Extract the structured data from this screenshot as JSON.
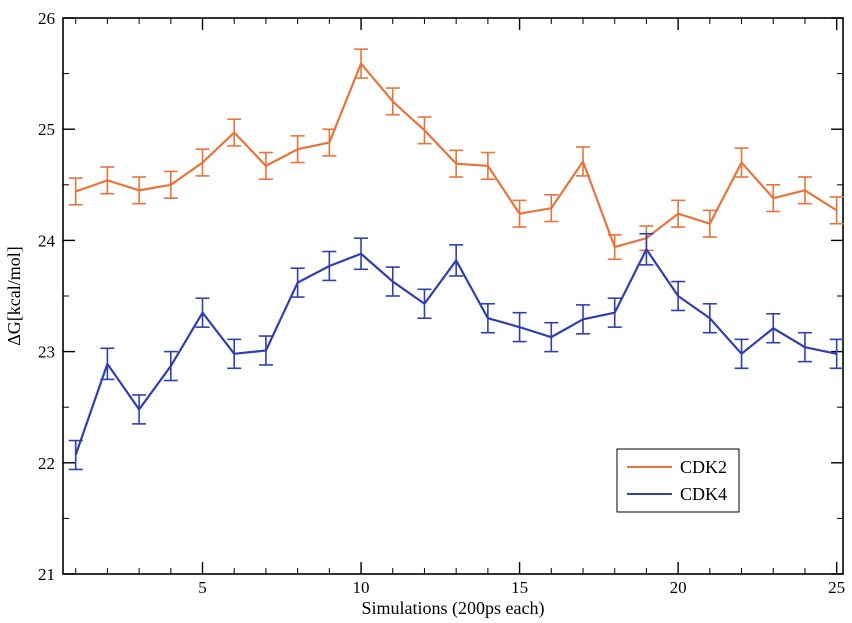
{
  "chart_data": {
    "type": "line",
    "xlabel": "Simulations (200ps each)",
    "ylabel": "ΔG[kcal/mol]",
    "xlim": [
      0.6,
      25.2
    ],
    "ylim": [
      21,
      26
    ],
    "x_ticks": [
      5,
      10,
      15,
      20,
      25
    ],
    "y_ticks": [
      21,
      22,
      23,
      24,
      25,
      26
    ],
    "grid": false,
    "legend_position": "bottom-right",
    "x": [
      1,
      2,
      3,
      4,
      5,
      6,
      7,
      8,
      9,
      10,
      11,
      12,
      13,
      14,
      15,
      16,
      17,
      18,
      19,
      20,
      21,
      22,
      23,
      24,
      25
    ],
    "series": [
      {
        "name": "CDK2",
        "color": "#e8743b",
        "values": [
          24.44,
          24.54,
          24.45,
          24.5,
          24.7,
          24.97,
          24.67,
          24.82,
          24.88,
          25.59,
          25.25,
          24.99,
          24.69,
          24.67,
          24.24,
          24.29,
          24.71,
          23.94,
          24.02,
          24.24,
          24.15,
          24.7,
          24.38,
          24.45,
          24.27
        ],
        "errors": [
          0.12,
          0.12,
          0.12,
          0.12,
          0.12,
          0.12,
          0.12,
          0.12,
          0.12,
          0.13,
          0.12,
          0.12,
          0.12,
          0.12,
          0.12,
          0.12,
          0.13,
          0.11,
          0.11,
          0.12,
          0.12,
          0.13,
          0.12,
          0.12,
          0.12
        ]
      },
      {
        "name": "CDK4",
        "color": "#2f3fb0",
        "values": [
          22.07,
          22.89,
          22.48,
          22.87,
          23.35,
          22.98,
          23.01,
          23.62,
          23.77,
          23.88,
          23.63,
          23.43,
          23.82,
          23.3,
          23.22,
          23.13,
          23.29,
          23.35,
          23.92,
          23.5,
          23.3,
          22.98,
          23.21,
          23.04,
          22.98
        ],
        "errors": [
          0.13,
          0.14,
          0.13,
          0.13,
          0.13,
          0.13,
          0.13,
          0.13,
          0.13,
          0.14,
          0.13,
          0.13,
          0.14,
          0.13,
          0.13,
          0.13,
          0.13,
          0.13,
          0.14,
          0.13,
          0.13,
          0.13,
          0.13,
          0.13,
          0.13
        ]
      }
    ]
  }
}
